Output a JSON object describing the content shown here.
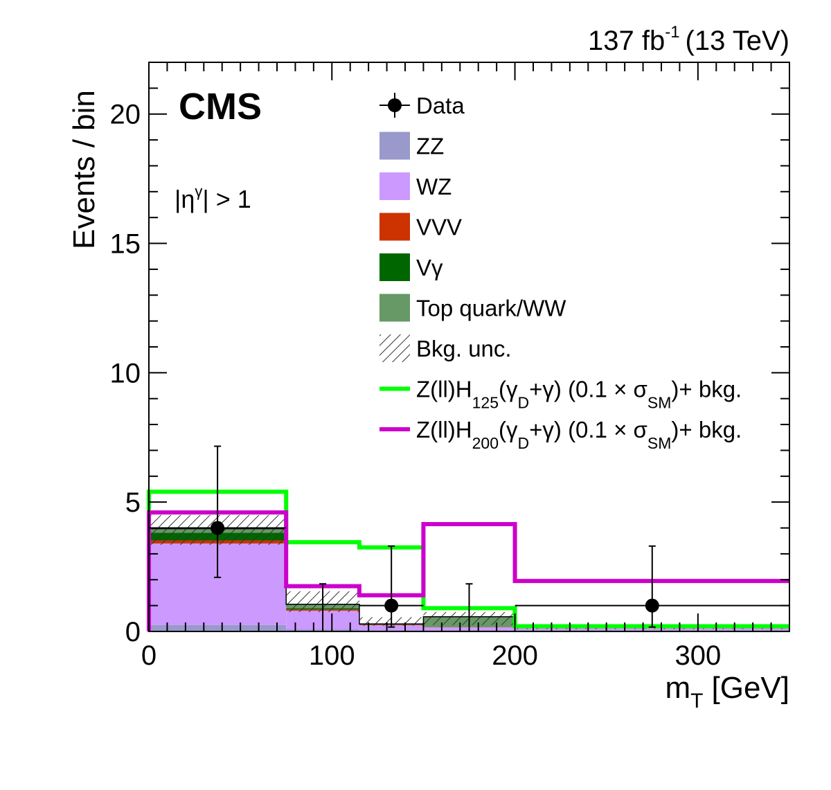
{
  "header": {
    "lumi": "137 fb",
    "lumi_exp": "-1",
    "energy": "(13 TeV)"
  },
  "labels": {
    "experiment": "CMS",
    "region_eta": "η",
    "region_gamma": "γ",
    "region_cut": "| > 1",
    "region_bar": "|"
  },
  "chart_data": {
    "type": "bar",
    "xlabel": "m",
    "xlabel_sub": "T",
    "xlabel_unit": "[GeV]",
    "ylabel": "Events / bin",
    "xlim": [
      0,
      350
    ],
    "ylim": [
      0,
      22
    ],
    "x_ticks": [
      "0",
      "100",
      "200",
      "300"
    ],
    "x_tick_values": [
      0,
      100,
      200,
      300
    ],
    "y_ticks": [
      "0",
      "5",
      "10",
      "15",
      "20"
    ],
    "y_tick_values": [
      0,
      5,
      10,
      15,
      20
    ],
    "bin_edges": [
      0,
      75,
      115,
      150,
      200,
      350
    ],
    "stack": [
      {
        "name": "ZZ",
        "color": "#9999cc",
        "values": [
          0.25,
          0.08,
          0.04,
          0.04,
          0.04
        ]
      },
      {
        "name": "WZ",
        "color": "#cc99ff",
        "values": [
          3.15,
          0.72,
          0.2,
          0.12,
          0.08
        ]
      },
      {
        "name": "VVV",
        "color": "#cc3300",
        "values": [
          0.12,
          0.05,
          0.02,
          0.01,
          0.01
        ]
      },
      {
        "name": "Vγ",
        "color": "#006600",
        "values": [
          0.3,
          0.05,
          0.01,
          0.0,
          0.0
        ]
      },
      {
        "name": "Top quark/WW",
        "color": "#669966",
        "values": [
          0.15,
          0.15,
          0.02,
          0.4,
          0.02
        ]
      }
    ],
    "bkg_unc": {
      "name": "Bkg. unc.",
      "low": [
        3.35,
        0.75,
        0.22,
        0.25,
        0.09
      ],
      "high": [
        4.5,
        1.55,
        0.55,
        0.75,
        0.21
      ]
    },
    "signals": [
      {
        "name": "Z(ll)H",
        "sub": "125",
        "color": "#00ff00",
        "values": [
          5.4,
          3.45,
          3.25,
          0.9,
          0.2
        ]
      },
      {
        "name": "Z(ll)H",
        "sub": "200",
        "color": "#cc00cc",
        "values": [
          4.6,
          1.75,
          1.4,
          4.15,
          1.95
        ]
      }
    ],
    "data": {
      "name": "Data",
      "x": [
        37.5,
        95,
        132.5,
        175,
        275
      ],
      "y": [
        4,
        0,
        1,
        0,
        1
      ],
      "yerr_low": [
        1.91,
        0,
        0.83,
        0,
        0.83
      ],
      "yerr_high": [
        3.16,
        1.84,
        2.3,
        1.84,
        2.3
      ],
      "xerr": [
        37.5,
        20,
        17.5,
        25,
        75
      ]
    },
    "legend": {
      "position": "top-right",
      "entries": [
        {
          "kind": "data",
          "label": "Data"
        },
        {
          "kind": "fill",
          "label": "ZZ",
          "color": "#9999cc"
        },
        {
          "kind": "fill",
          "label": "WZ",
          "color": "#cc99ff"
        },
        {
          "kind": "fill",
          "label": "VVV",
          "color": "#cc3300"
        },
        {
          "kind": "fill",
          "label": "Vγ",
          "color": "#006600"
        },
        {
          "kind": "fill",
          "label": "Top quark/WW",
          "color": "#669966"
        },
        {
          "kind": "hatch",
          "label": "Bkg. unc."
        }
      ],
      "signal_entries": [
        {
          "color": "#00ff00",
          "pre": "Z(ll)H",
          "mass": "125",
          "mid": "(γ",
          "d": "D",
          "post": "+γ) (0.1 × σ",
          "sm": "SM",
          "tail": ")+ bkg."
        },
        {
          "color": "#cc00cc",
          "pre": "Z(ll)H",
          "mass": "200",
          "mid": "(γ",
          "d": "D",
          "post": "+γ) (0.1 × σ",
          "sm": "SM",
          "tail": ")+ bkg."
        }
      ]
    }
  }
}
